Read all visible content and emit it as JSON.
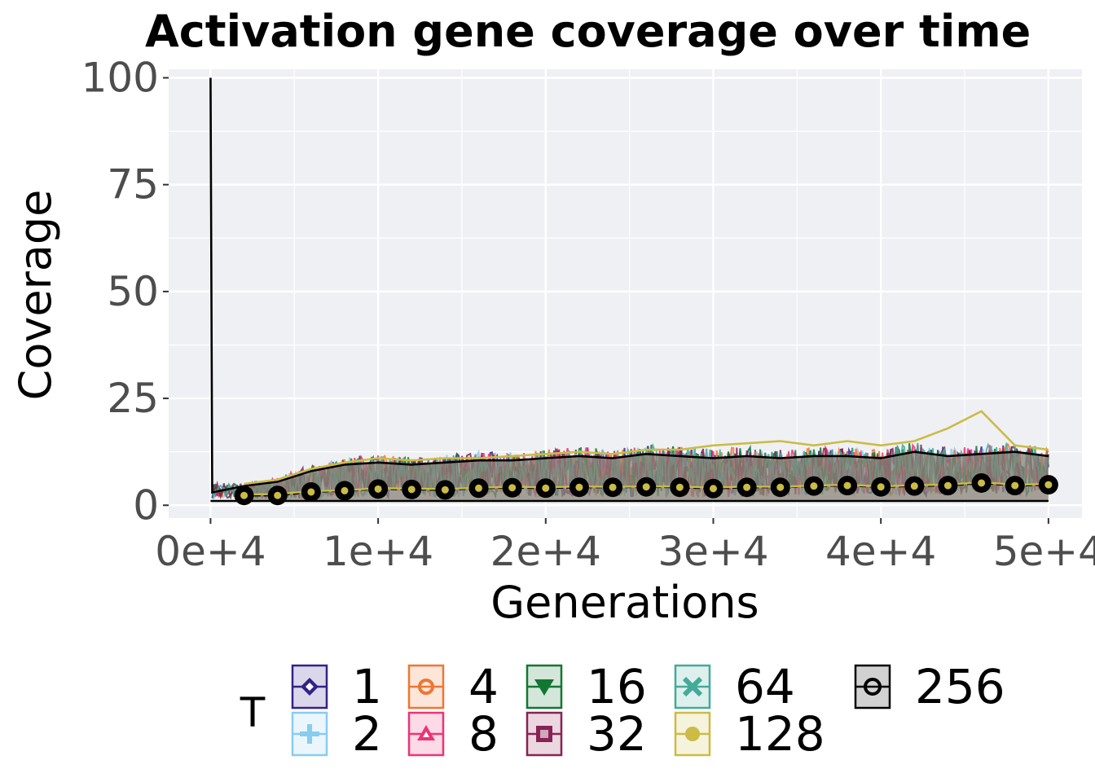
{
  "chart_data": {
    "type": "line",
    "title": "Activation gene coverage over time",
    "xlabel": "Generations",
    "ylabel": "Coverage",
    "xlim": [
      -2500,
      52000
    ],
    "ylim": [
      -3,
      102
    ],
    "x_ticks": [
      0,
      10000,
      20000,
      30000,
      40000,
      50000
    ],
    "x_tick_labels": [
      "0e+4",
      "1e+4",
      "2e+4",
      "3e+4",
      "4e+4",
      "5e+4"
    ],
    "y_ticks": [
      0,
      25,
      50,
      75,
      100
    ],
    "y_tick_labels": [
      "0",
      "25",
      "50",
      "75",
      "100"
    ],
    "grid": true,
    "legend": {
      "title": "T",
      "placement": "bottom",
      "entries": [
        {
          "label": "1",
          "color": "#332288",
          "marker": "diamond"
        },
        {
          "label": "2",
          "color": "#88CCEE",
          "marker": "plus"
        },
        {
          "label": "4",
          "color": "#EE7733",
          "marker": "circle-open"
        },
        {
          "label": "8",
          "color": "#EE3377",
          "marker": "triangle-up"
        },
        {
          "label": "16",
          "color": "#117733",
          "marker": "triangle-down"
        },
        {
          "label": "32",
          "color": "#882255",
          "marker": "square-open"
        },
        {
          "label": "64",
          "color": "#44AA99",
          "marker": "x"
        },
        {
          "label": "128",
          "color": "#CCBB44",
          "marker": "circle"
        },
        {
          "label": "256",
          "color": "#000000",
          "marker": "circle-open-bold"
        }
      ]
    },
    "x": [
      2000,
      4000,
      6000,
      8000,
      10000,
      12000,
      14000,
      16000,
      18000,
      20000,
      22000,
      24000,
      26000,
      28000,
      30000,
      32000,
      34000,
      36000,
      38000,
      40000,
      42000,
      44000,
      46000,
      48000,
      50000
    ],
    "series": [
      {
        "name": "256",
        "color": "#000000",
        "initial": [
          [
            0,
            100
          ],
          [
            100,
            3
          ]
        ],
        "median": [
          2.3,
          2.3,
          3.1,
          3.4,
          3.8,
          3.7,
          3.6,
          4.0,
          4.1,
          4.0,
          4.2,
          4.2,
          4.3,
          4.2,
          3.9,
          4.2,
          4.2,
          4.5,
          4.6,
          4.3,
          4.5,
          4.6,
          5.2,
          4.6,
          4.8
        ],
        "upper": [
          4.5,
          5.5,
          8.0,
          9.5,
          10.0,
          9.5,
          10.0,
          10.5,
          10.5,
          11.0,
          11.5,
          11.0,
          12.0,
          11.5,
          11.0,
          11.5,
          11.0,
          11.5,
          11.5,
          11.0,
          12.5,
          11.5,
          12.0,
          12.5,
          11.5
        ],
        "lower": [
          1.0,
          1.0,
          1.0,
          1.0,
          1.0,
          1.0,
          1.0,
          1.0,
          1.0,
          1.0,
          1.0,
          1.0,
          1.0,
          1.0,
          1.0,
          1.0,
          1.0,
          1.0,
          1.0,
          1.0,
          1.0,
          1.0,
          1.0,
          1.0,
          1.0
        ]
      },
      {
        "name": "128",
        "color": "#CCBB44",
        "median": [
          2.5,
          2.6,
          3.3,
          3.5,
          4.0,
          3.9,
          3.8,
          4.1,
          4.3,
          4.2,
          4.4,
          4.3,
          4.4,
          4.4,
          4.1,
          4.4,
          4.3,
          4.6,
          4.8,
          4.4,
          4.7,
          4.8,
          5.4,
          4.8,
          5.0
        ],
        "upper": [
          5.0,
          6.0,
          8.5,
          10.0,
          11.0,
          10.5,
          11.0,
          11.0,
          11.5,
          12.0,
          12.5,
          12.0,
          13.0,
          13.0,
          14.0,
          14.5,
          15.0,
          14.0,
          15.0,
          14.0,
          15.0,
          18.0,
          22.0,
          14.0,
          13.0
        ]
      }
    ],
    "other_series_names": [
      "1",
      "2",
      "4",
      "8",
      "16",
      "32",
      "64"
    ]
  }
}
